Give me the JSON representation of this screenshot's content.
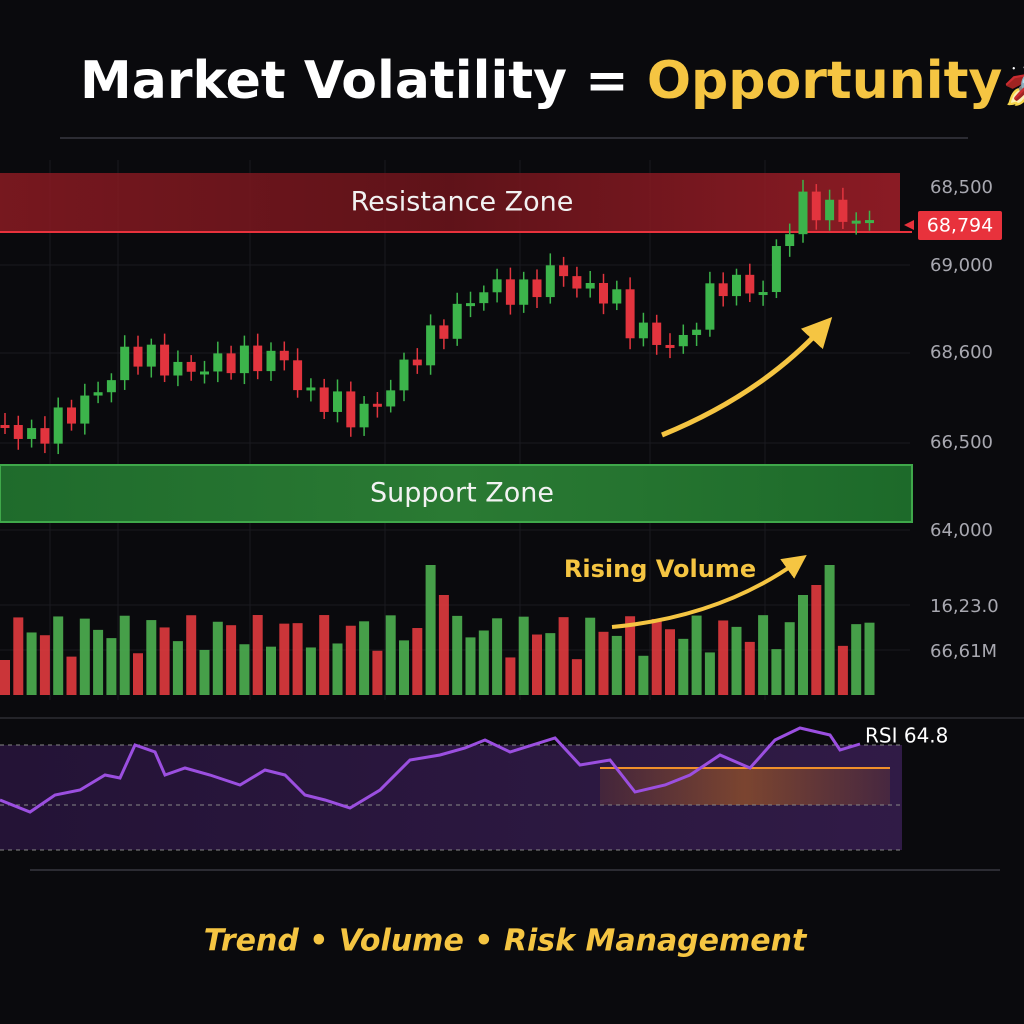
{
  "header": {
    "title_main": "Market Volatility",
    "title_equals": "=",
    "title_highlight": "Opportunity",
    "title_icon": "🚀"
  },
  "zones": {
    "resistance": "Resistance Zone",
    "support": "Support Zone"
  },
  "price_axis": {
    "labels": [
      "68,500",
      "69,000",
      "68,600",
      "66,500",
      "64,000",
      "16,23.0",
      "66,61M"
    ],
    "current_price": "68,794"
  },
  "annotations": {
    "rising_volume": "Rising Volume",
    "rsi": "RSI 64.8"
  },
  "footer": {
    "tagline": "Trend • Volume • Risk Management"
  }
}
